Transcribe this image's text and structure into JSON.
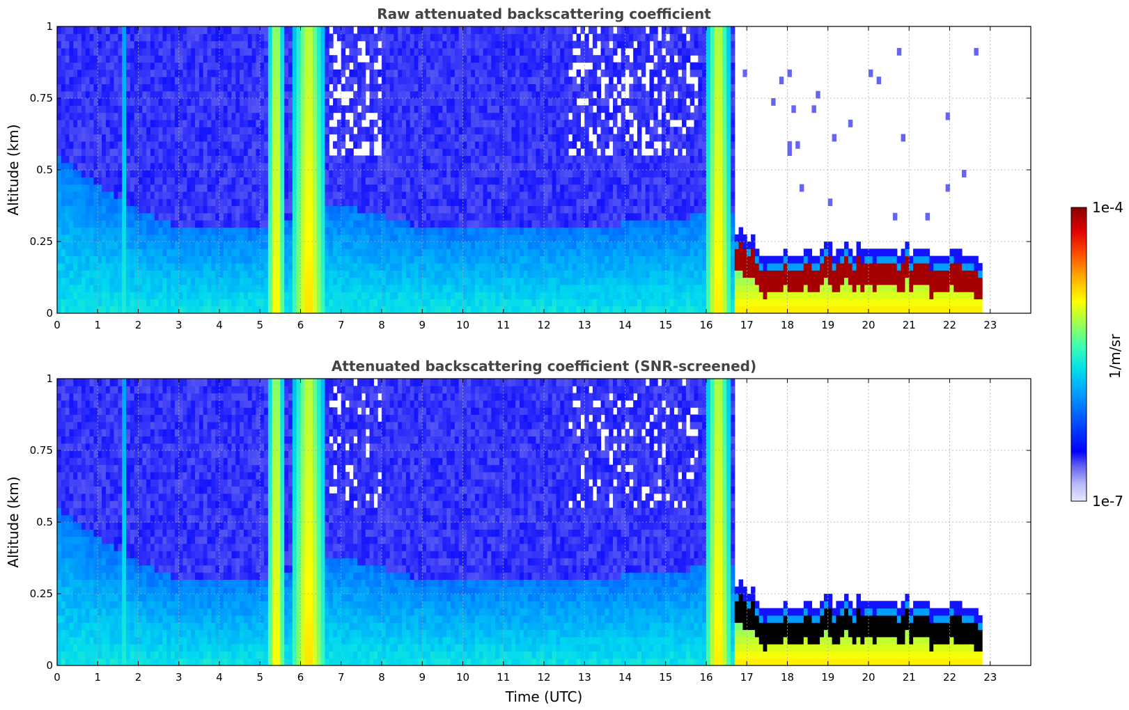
{
  "chart_data": [
    {
      "type": "heatmap",
      "title": "Raw attenuated backscattering coefficient",
      "xlabel": "",
      "ylabel": "Altitude (km)",
      "xlim": [
        0,
        24
      ],
      "ylim": [
        0,
        1
      ],
      "x_ticks": [
        "0",
        "1",
        "2",
        "3",
        "4",
        "5",
        "6",
        "7",
        "8",
        "9",
        "10",
        "11",
        "12",
        "13",
        "14",
        "15",
        "16",
        "17",
        "18",
        "19",
        "20",
        "21",
        "22",
        "23"
      ],
      "y_ticks": [
        "0",
        "0.25",
        "0.5",
        "0.75",
        "1"
      ],
      "grid": true,
      "data_extent_hours": [
        0,
        22.8
      ],
      "boundary_layer_top_km": [
        {
          "t": 0,
          "z": 0.55
        },
        {
          "t": 1,
          "z": 0.45
        },
        {
          "t": 2,
          "z": 0.36
        },
        {
          "t": 3,
          "z": 0.3
        },
        {
          "t": 4,
          "z": 0.3
        },
        {
          "t": 5,
          "z": 0.3
        },
        {
          "t": 7,
          "z": 0.38
        },
        {
          "t": 9,
          "z": 0.3
        },
        {
          "t": 12,
          "z": 0.3
        },
        {
          "t": 15,
          "z": 0.32
        },
        {
          "t": 16,
          "z": 0.35
        }
      ],
      "cloud_base_km": [
        {
          "t": 16.0,
          "z": 0.32
        },
        {
          "t": 16.5,
          "z": 0.25
        },
        {
          "t": 17.0,
          "z": 0.18
        },
        {
          "t": 17.5,
          "z": 0.12
        },
        {
          "t": 18,
          "z": 0.12
        },
        {
          "t": 19,
          "z": 0.14
        },
        {
          "t": 20,
          "z": 0.14
        },
        {
          "t": 21,
          "z": 0.14
        },
        {
          "t": 22,
          "z": 0.13
        },
        {
          "t": 22.8,
          "z": 0.12
        }
      ],
      "rain_bands_hours": [
        [
          1.65,
          1.75
        ],
        [
          5.2,
          5.6
        ],
        [
          5.8,
          6.6
        ],
        [
          16.0,
          16.6
        ]
      ]
    },
    {
      "type": "heatmap",
      "title": "Attenuated backscattering coefficient (SNR-screened)",
      "xlabel": "Time (UTC)",
      "ylabel": "Altitude (km)",
      "xlim": [
        0,
        24
      ],
      "ylim": [
        0,
        1
      ],
      "x_ticks": [
        "0",
        "1",
        "2",
        "3",
        "4",
        "5",
        "6",
        "7",
        "8",
        "9",
        "10",
        "11",
        "12",
        "13",
        "14",
        "15",
        "16",
        "17",
        "18",
        "19",
        "20",
        "21",
        "22",
        "23"
      ],
      "y_ticks": [
        "0",
        "0.25",
        "0.5",
        "0.75",
        "1"
      ],
      "grid": true,
      "data_extent_hours": [
        0,
        22.8
      ],
      "screened_cloud_core_color": "#000000"
    }
  ],
  "colorbar": {
    "label": "1/m/sr",
    "max_label": "1e-4",
    "min_label": "1e-7",
    "scale": "log",
    "range": [
      1e-07,
      0.0001
    ],
    "colormap": [
      "#e8e8ff",
      "#c0c0f8",
      "#8080f0",
      "#0000ff",
      "#0040ff",
      "#0090ff",
      "#00d8f0",
      "#40ffb0",
      "#b0ff40",
      "#ffff00",
      "#ffb000",
      "#ff5000",
      "#e00000",
      "#900000"
    ]
  }
}
